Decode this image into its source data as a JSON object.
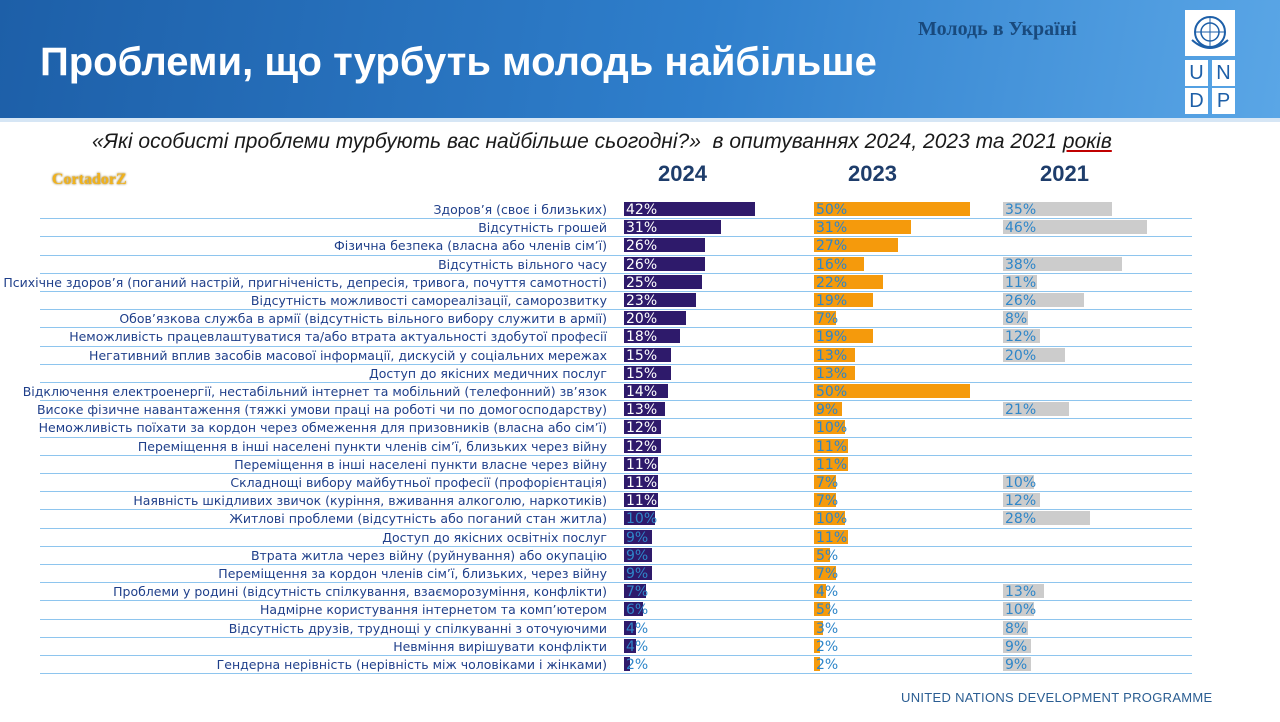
{
  "header": {
    "title": "Проблеми, що турбуть молодь найбільше",
    "badge": "Молодь в Україні",
    "logo_letters": [
      "U",
      "N",
      "D",
      "P"
    ]
  },
  "subtitle": {
    "question": "«Які особисті проблеми турбують вас найбільше сьогодні?»",
    "rest": "  в опитуваннях 2024, 2023 та 2021 ",
    "last_word": "років"
  },
  "watermark": "CortadorZ",
  "footer": "UNITED NATIONS DEVELOPMENT PROGRAMME",
  "colors": {
    "header_blue": "#1d5fa8",
    "bar_2024": "#2e1a6b",
    "bar_2023": "#f59a0c",
    "bar_2021": "#cccccc",
    "text_2024": "#ffffff",
    "text_2023": "#2e86c9",
    "text_2021": "#2e86c9"
  },
  "chart_data": {
    "type": "bar",
    "orientation": "horizontal",
    "series": [
      {
        "name": "2024"
      },
      {
        "name": "2023"
      },
      {
        "name": "2021"
      }
    ],
    "rows": [
      {
        "label": "Здоров’я (своє і близьких)",
        "v2024": 42,
        "v2023": 50,
        "v2021": 35
      },
      {
        "label": "Відсутність грошей",
        "v2024": 31,
        "v2023": 31,
        "v2021": 46
      },
      {
        "label": "Фізична безпека (власна або членів сім’ї)",
        "v2024": 26,
        "v2023": 27,
        "v2021": null
      },
      {
        "label": "Відсутність вільного часу",
        "v2024": 26,
        "v2023": 16,
        "v2021": 38
      },
      {
        "label": "Психічне здоров’я (поганий настрій, пригніченість, депресія, тривога, почуття самотності)",
        "v2024": 25,
        "v2023": 22,
        "v2021": 11
      },
      {
        "label": "Відсутність можливості самореалізації, саморозвитку",
        "v2024": 23,
        "v2023": 19,
        "v2021": 26
      },
      {
        "label": "Обов’язкова служба в армії (відсутність вільного вибору служити в армії)",
        "v2024": 20,
        "v2023": 7,
        "v2021": 8
      },
      {
        "label": "Неможливість працевлаштуватися та/або втрата актуальності здобутої професії",
        "v2024": 18,
        "v2023": 19,
        "v2021": 12
      },
      {
        "label": "Негативний вплив засобів масової інформації, дискусій у соціальних мережах",
        "v2024": 15,
        "v2023": 13,
        "v2021": 20
      },
      {
        "label": "Доступ до якісних медичних послуг",
        "v2024": 15,
        "v2023": 13,
        "v2021": null
      },
      {
        "label": "Відключення електроенергії, нестабільний інтернет та мобільний (телефонний) зв’язок",
        "v2024": 14,
        "v2023": 50,
        "v2021": null
      },
      {
        "label": "Високе фізичне навантаження (тяжкі умови праці на роботі чи по домогосподарству)",
        "v2024": 13,
        "v2023": 9,
        "v2021": 21
      },
      {
        "label": "Неможливість поїхати за кордон через обмеження для призовників (власна або сім’ї)",
        "v2024": 12,
        "v2023": 10,
        "v2021": null
      },
      {
        "label": "Переміщення в інші населені пункти членів сім’ї, близьких через війну",
        "v2024": 12,
        "v2023": 11,
        "v2021": null
      },
      {
        "label": "Переміщення в інші населені пункти власне через війну",
        "v2024": 11,
        "v2023": 11,
        "v2021": null
      },
      {
        "label": "Складнощі вибору майбутньої професії (профорієнтація)",
        "v2024": 11,
        "v2023": 7,
        "v2021": 10
      },
      {
        "label": "Наявність шкідливих звичок (куріння, вживання алкоголю, наркотиків)",
        "v2024": 11,
        "v2023": 7,
        "v2021": 12
      },
      {
        "label": "Житлові проблеми (відсутність або поганий стан житла)",
        "v2024": 10,
        "v2023": 10,
        "v2021": 28
      },
      {
        "label": "Доступ до якісних освітніх послуг",
        "v2024": 9,
        "v2023": 11,
        "v2021": null
      },
      {
        "label": "Втрата житла через війну (руйнування) або окупацію",
        "v2024": 9,
        "v2023": 5,
        "v2021": null
      },
      {
        "label": "Переміщення за кордон членів сім’ї, близьких, через війну",
        "v2024": 9,
        "v2023": 7,
        "v2021": null
      },
      {
        "label": "Проблеми у родині (відсутність спілкування, взаєморозуміння, конфлікти)",
        "v2024": 7,
        "v2023": 4,
        "v2021": 13
      },
      {
        "label": "Надмірне користування інтернетом та комп’ютером",
        "v2024": 6,
        "v2023": 5,
        "v2021": 10
      },
      {
        "label": "Відсутність друзів, труднощі у спілкуванні з оточуючими",
        "v2024": 4,
        "v2023": 3,
        "v2021": 8
      },
      {
        "label": "Невміння вирішувати конфлікти",
        "v2024": 4,
        "v2023": 2,
        "v2021": 9
      },
      {
        "label": "Гендерна нерівність (нерівність між чоловіками і жінками)",
        "v2024": 2,
        "v2023": 2,
        "v2021": 9
      }
    ],
    "value_suffix": "%",
    "xlim": [
      0,
      50
    ]
  }
}
